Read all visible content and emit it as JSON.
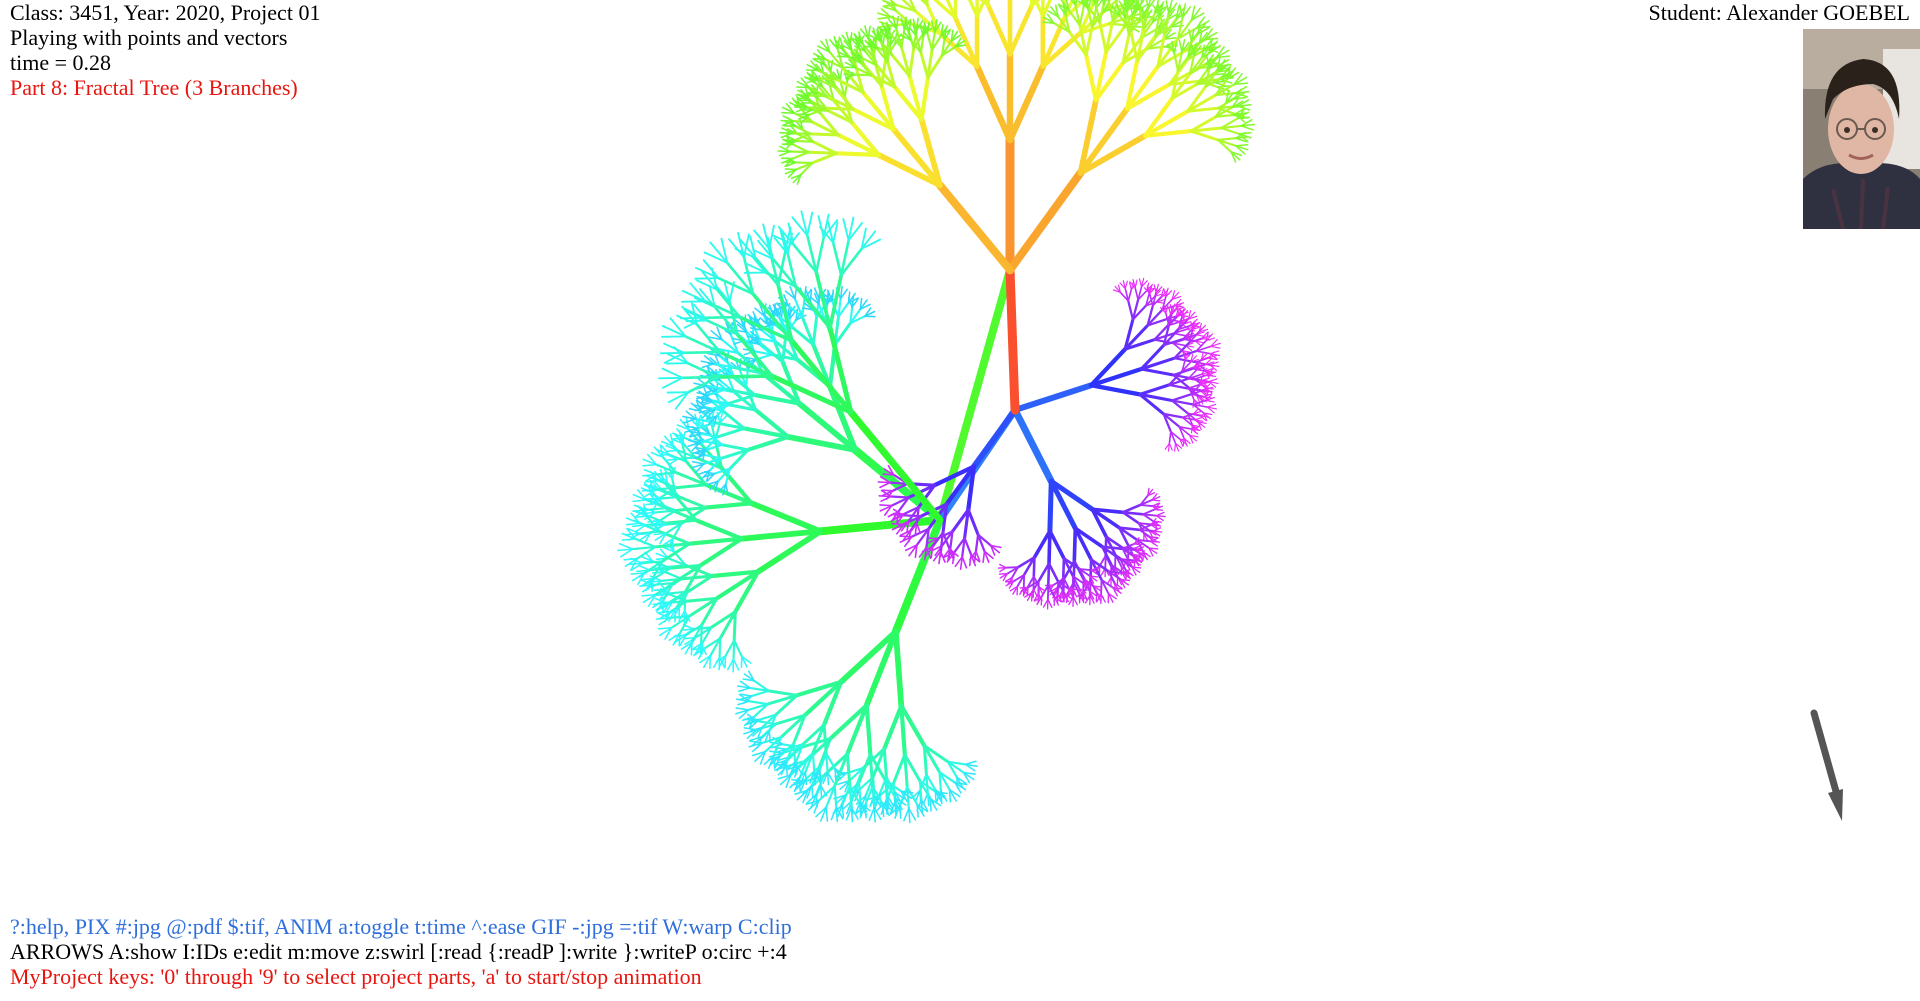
{
  "header": {
    "class_line": "Class: 3451, Year: 2020, Project 01",
    "subtitle": "Playing with points and vectors",
    "time_line": "time = 0.28",
    "part_line": "Part 8: Fractal Tree (3 Branches)"
  },
  "student": {
    "name_line": "Student: Alexander GOEBEL"
  },
  "footer": {
    "help_line": "?:help, PIX #:jpg @:pdf $:tif, ANIM a:toggle t:time ^:ease GIF -:jpg =:tif W:warp C:clip",
    "arrows_line": "ARROWS A:show I:IDs e:edit m:move z:swirl [:read {:readP ]:write }:writeP o:circ +:4",
    "project_keys_line": "MyProject keys: '0' through '9' to select project parts, 'a' to start/stop animation"
  },
  "colors": {
    "red_text": "#e8150f",
    "blue_text": "#2f6fdc",
    "arrow": "#555555"
  },
  "icons": {
    "portrait": "student-photo",
    "vector": "vector-arrow-icon"
  }
}
